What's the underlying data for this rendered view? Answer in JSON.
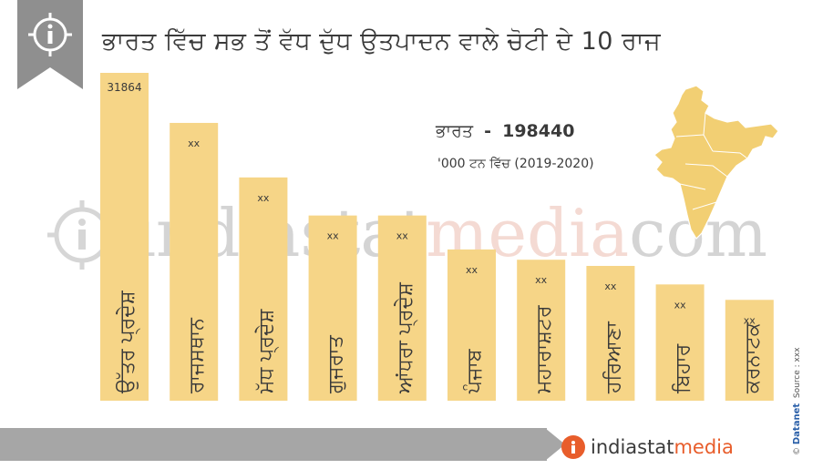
{
  "title": "ਭਾਰਤ ਵਿੱਚ ਸਭ ਤੋਂ ਵੱਧ ਦੁੱਧ ਉਤਪਾਦਨ ਵਾਲੇ ਚੋਟੀ ਦੇ 10 ਰਾਜ",
  "summary": {
    "country_label": "ਭਾਰਤ",
    "separator": "-",
    "country_value": "198440",
    "unit_note": "'000 ਟਨ ਵਿੱਚ (2019-2020)"
  },
  "watermark": {
    "part1": "indiastat",
    "part2": "media",
    "part3": "com"
  },
  "footer": {
    "brand_part1": "indiastat",
    "brand_part2": "media",
    "brand_icon_letter": "i",
    "credit_copyright": "©",
    "credit_brand": "Datanet",
    "credit_source": "Source : xxx"
  },
  "icons": {
    "corner": "info-icon",
    "map": "india-map-icon"
  },
  "colors": {
    "bar": "#f6d587",
    "text": "#3a3a3a",
    "footer": "#a6a6a6",
    "accent": "#e85d2b",
    "corner": "#8f8f8f",
    "map": "#f2cf73"
  },
  "chart_data": {
    "type": "bar",
    "title": "ਭਾਰਤ ਵਿੱਚ ਸਭ ਤੋਂ ਵੱਧ ਦੁੱਧ ਉਤਪਾਦਨ ਵਾਲੇ ਚੋਟੀ ਦੇ 10 ਰਾਜ",
    "categories": [
      "ਉੱਤਰ ਪ੍ਰਦੇਸ਼",
      "ਰਾਜਸਥਾਨ",
      "ਮੱਧ ਪ੍ਰਦੇਸ਼",
      "ਗੁਜਰਾਤ",
      "ਆਂਧਰਾ ਪ੍ਰਦੇਸ਼",
      "ਪੰਜਾਬ",
      "ਮਹਾਰਾਸ਼ਟਰ",
      "ਹਰਿਆਣਾ",
      "ਬਿਹਾਰ",
      "ਕਰਨਾਟਕ"
    ],
    "value_labels": [
      "31864",
      "xx",
      "xx",
      "xx",
      "xx",
      "xx",
      "xx",
      "xx",
      "xx",
      "xx"
    ],
    "values": [
      31864,
      27000,
      21700,
      18000,
      18000,
      14700,
      13700,
      13100,
      11300,
      9800
    ],
    "unit": "'000 ਟਨ",
    "ylim": [
      0,
      33000
    ],
    "grid": false,
    "legend": "none"
  }
}
